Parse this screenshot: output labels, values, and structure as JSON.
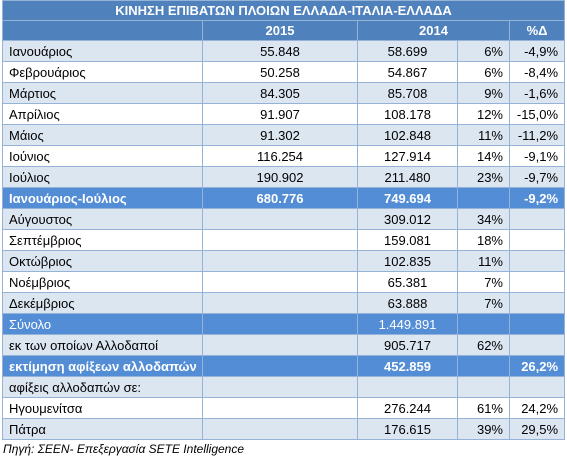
{
  "table": {
    "title": "ΚΙΝΗΣΗ ΕΠΙΒΑΤΩΝ ΠΛΟΙΩΝ ΕΛΛΑΔΑ-ΙΤΑΛΙΑ-ΕΛΛΑΔΑ",
    "header": [
      "2015",
      "2014",
      "%Δ"
    ],
    "rows": [
      [
        "Ιανουάριος",
        "55.848",
        "58.699",
        "6%",
        "-4,9%"
      ],
      [
        "Φεβρουάριος",
        "50.258",
        "54.867",
        "6%",
        "-8,4%"
      ],
      [
        "Μάρτιος",
        "84.305",
        "85.708",
        "9%",
        "-1,6%"
      ],
      [
        "Απρίλιος",
        "91.907",
        "108.178",
        "12%",
        "-15,0%"
      ],
      [
        "Μάιος",
        "91.302",
        "102.848",
        "11%",
        "-11,2%"
      ],
      [
        "Ιούνιος",
        "116.254",
        "127.914",
        "14%",
        "-9,1%"
      ],
      [
        "Ιούλιος",
        "190.902",
        "211.480",
        "23%",
        "-9,7%"
      ],
      [
        "Ιανουάριος-Ιούλιος",
        "680.776",
        "749.694",
        null,
        "-9,2%"
      ],
      [
        "Αύγουστος",
        null,
        "309.012",
        "34%",
        null
      ],
      [
        "Σεπτέμβριος",
        null,
        "159.081",
        "18%",
        null
      ],
      [
        "Οκτώβριος",
        null,
        "102.835",
        "11%",
        null
      ],
      [
        "Νοέμβριος",
        null,
        "65.381",
        "7%",
        null
      ],
      [
        "Δεκέμβριος",
        null,
        "63.888",
        "7%",
        null
      ],
      [
        "Σύνολο",
        null,
        "1.449.891",
        null,
        null
      ],
      [
        "εκ των οποίων Αλλοδαποί",
        null,
        "905.717",
        "62%",
        null
      ],
      [
        "εκτίμηση αφίξεων αλλοδαπών",
        null,
        "452.859",
        null,
        "26,2%"
      ],
      [
        "αφίξεις αλλοδαπών σε:",
        null,
        null,
        null,
        null
      ],
      [
        "Ηγουμενίτσα",
        null,
        "276.244",
        "61%",
        "24,2%"
      ],
      [
        "Πάτρα",
        null,
        "176.615",
        "39%",
        "29,5%"
      ]
    ],
    "source": "Πηγή: ΣΕΕΝ- Επεξεργασία SETE Intelligence"
  }
}
